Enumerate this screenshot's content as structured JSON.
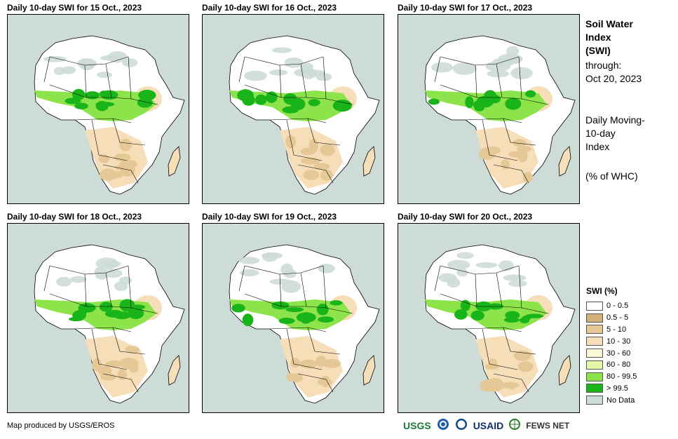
{
  "panels": [
    {
      "title": "Daily 10-day SWI for 15 Oct., 2023"
    },
    {
      "title": "Daily 10-day SWI for 16 Oct., 2023"
    },
    {
      "title": "Daily 10-day SWI for 17 Oct., 2023"
    },
    {
      "title": "Daily 10-day SWI for 18 Oct., 2023"
    },
    {
      "title": "Daily 10-day SWI for 19 Oct., 2023"
    },
    {
      "title": "Daily 10-day SWI for 20 Oct., 2023"
    }
  ],
  "side": {
    "title_line1": "Soil Water",
    "title_line2": "Index",
    "title_line3": "(SWI)",
    "through_label": "through:",
    "through_date": "Oct 20, 2023",
    "desc_line1": "Daily Moving-",
    "desc_line2": "10-day",
    "desc_line3": "Index",
    "units": "(% of WHC)"
  },
  "legend": {
    "title": "SWI (%)",
    "items": [
      {
        "label": "0 - 0.5",
        "color": "#ffffff"
      },
      {
        "label": "0.5 - 5",
        "color": "#d2b07a"
      },
      {
        "label": "5 - 10",
        "color": "#e6c896"
      },
      {
        "label": "10 - 30",
        "color": "#f5deb8"
      },
      {
        "label": "30 - 60",
        "color": "#fcf9d8"
      },
      {
        "label": "60 - 80",
        "color": "#e4f7a8"
      },
      {
        "label": "80 - 99.5",
        "color": "#8ce34a"
      },
      {
        "label": "> 99.5",
        "color": "#19b419"
      },
      {
        "label": "No Data",
        "color": "#cddcd6"
      }
    ]
  },
  "footer": {
    "credit": "Map produced by USGS/EROS",
    "logos": [
      "USGS",
      "NOAA",
      "USAID",
      "FEWS NET"
    ]
  },
  "map_colors": {
    "land": "#ffffff",
    "sahara_nodata": "#cddcd6",
    "dry_tan": "#e6c896",
    "light_tan": "#f5deb8",
    "wet": "#8ce34a",
    "very_wet": "#19b419"
  }
}
